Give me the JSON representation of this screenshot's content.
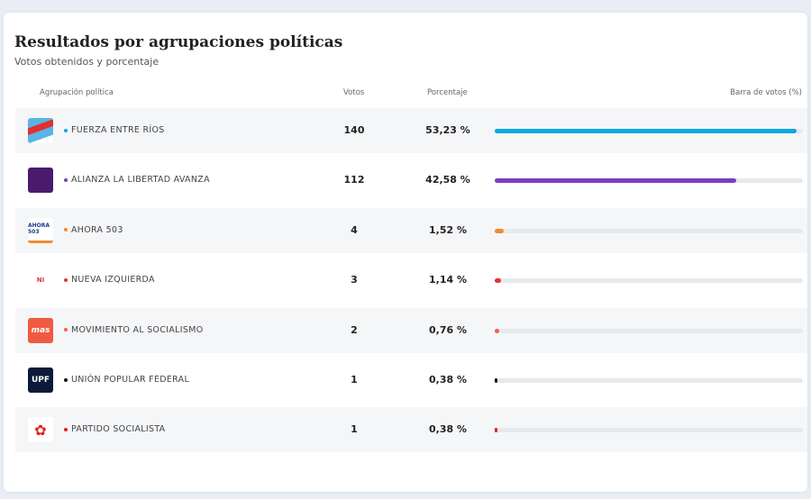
{
  "header": {
    "title": "Resultados por agrupaciones políticas",
    "subtitle": "Votos obtenidos y porcentaje"
  },
  "columns": {
    "party": "Agrupación política",
    "votes": "Votos",
    "percent": "Porcentaje",
    "bar": "Barra de votos (%)"
  },
  "rows": [
    {
      "name": "FUERZA ENTRE RÍOS",
      "votes": "140",
      "percent": "53,23 %",
      "value": 53.23,
      "color": "#0aa8e0",
      "logo": "FUERZA"
    },
    {
      "name": "ALIANZA LA LIBERTAD AVANZA",
      "votes": "112",
      "percent": "42,58 %",
      "value": 42.58,
      "color": "#7b3fbf",
      "logo": "LLA"
    },
    {
      "name": "AHORA 503",
      "votes": "4",
      "percent": "1,52 %",
      "value": 1.52,
      "color": "#f08a30",
      "logo": "AHORA 503"
    },
    {
      "name": "NUEVA IZQUIERDA",
      "votes": "3",
      "percent": "1,14 %",
      "value": 1.14,
      "color": "#e03535",
      "logo": "NI"
    },
    {
      "name": "MOVIMIENTO AL SOCIALISMO",
      "votes": "2",
      "percent": "0,76 %",
      "value": 0.76,
      "color": "#f06050",
      "logo": "mas"
    },
    {
      "name": "UNIÓN POPULAR FEDERAL",
      "votes": "1",
      "percent": "0,38 %",
      "value": 0.38,
      "color": "#111111",
      "logo": "UPF"
    },
    {
      "name": "PARTIDO SOCIALISTA",
      "votes": "1",
      "percent": "0,38 %",
      "value": 0.38,
      "color": "#e02020",
      "logo": "PS"
    }
  ]
}
